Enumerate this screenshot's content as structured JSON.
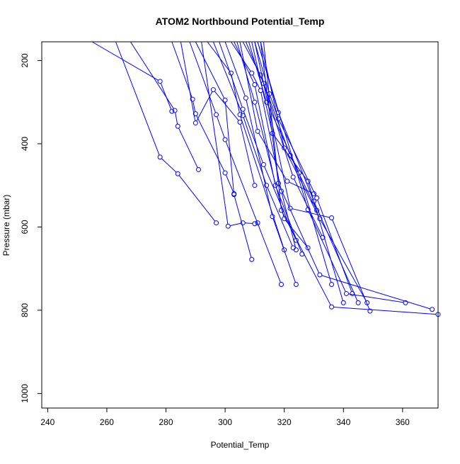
{
  "chart_data": {
    "type": "line",
    "title": "ATOM2 Northbound Potential_Temp",
    "xlabel": "Potential_Temp",
    "ylabel": "Pressure (mbar)",
    "xlim": [
      238,
      372
    ],
    "ylim": [
      1035,
      155
    ],
    "y_reversed": true,
    "x_ticks": [
      240,
      260,
      280,
      300,
      320,
      340,
      360
    ],
    "y_ticks": [
      200,
      400,
      600,
      800,
      1000
    ],
    "series_color": "#0000ff",
    "marker": "open-circle",
    "grid": false,
    "legend": "none",
    "series": [
      {
        "points": [
          [
            255,
            155
          ],
          [
            278,
            250
          ],
          [
            282,
            322
          ]
        ]
      },
      {
        "points": [
          [
            263,
            155
          ],
          [
            278,
            432
          ],
          [
            284,
            472
          ],
          [
            297,
            590
          ]
        ]
      },
      {
        "points": [
          [
            268,
            155
          ],
          [
            283,
            320
          ],
          [
            284,
            358
          ],
          [
            291,
            462
          ]
        ]
      },
      {
        "points": [
          [
            282,
            155
          ],
          [
            289,
            293
          ],
          [
            290,
            328
          ],
          [
            300,
            470
          ],
          [
            303,
            520
          ]
        ]
      },
      {
        "points": [
          [
            285,
            155
          ],
          [
            290,
            350
          ],
          [
            296,
            270
          ],
          [
            305,
            348
          ],
          [
            310,
            500
          ]
        ]
      },
      {
        "points": [
          [
            288,
            155
          ],
          [
            297,
            330
          ],
          [
            300,
            390
          ],
          [
            319,
            738
          ]
        ]
      },
      {
        "points": [
          [
            290,
            155
          ],
          [
            300,
            295
          ],
          [
            303,
            522
          ],
          [
            309,
            678
          ]
        ]
      },
      {
        "points": [
          [
            292,
            155
          ],
          [
            301,
            598
          ],
          [
            306,
            590
          ],
          [
            310,
            592
          ],
          [
            311,
            590
          ]
        ]
      },
      {
        "points": [
          [
            294,
            155
          ],
          [
            302,
            230
          ],
          [
            305,
            330
          ],
          [
            320,
            655
          ]
        ]
      },
      {
        "points": [
          [
            296,
            155
          ],
          [
            306,
            332
          ],
          [
            314,
            500
          ],
          [
            323,
            650
          ]
        ]
      },
      {
        "points": [
          [
            298,
            155
          ],
          [
            306,
            317
          ],
          [
            313,
            450
          ],
          [
            324,
            632
          ]
        ]
      },
      {
        "points": [
          [
            300,
            155
          ],
          [
            307,
            290
          ],
          [
            316,
            575
          ],
          [
            324,
            738
          ]
        ]
      },
      {
        "points": [
          [
            302,
            155
          ],
          [
            309,
            230
          ],
          [
            312,
            272
          ],
          [
            319,
            514
          ],
          [
            324,
            655
          ]
        ]
      },
      {
        "points": [
          [
            303,
            155
          ],
          [
            310,
            258
          ],
          [
            317,
            500
          ],
          [
            326,
            665
          ]
        ]
      },
      {
        "points": [
          [
            304,
            155
          ],
          [
            310,
            300
          ],
          [
            320,
            580
          ],
          [
            328,
            650
          ]
        ]
      },
      {
        "points": [
          [
            305,
            155
          ],
          [
            311,
            370
          ],
          [
            321,
            490
          ],
          [
            330,
            520
          ]
        ]
      },
      {
        "points": [
          [
            306,
            155
          ],
          [
            312,
            235
          ],
          [
            322,
            428
          ],
          [
            331,
            560
          ]
        ]
      },
      {
        "points": [
          [
            307,
            155
          ],
          [
            313,
            255
          ],
          [
            323,
            480
          ],
          [
            333,
            625
          ]
        ]
      },
      {
        "points": [
          [
            308,
            155
          ],
          [
            314,
            300
          ],
          [
            325,
            470
          ],
          [
            336,
            738
          ]
        ]
      },
      {
        "points": [
          [
            309,
            155
          ],
          [
            316,
            375
          ],
          [
            328,
            490
          ],
          [
            340,
            782
          ]
        ]
      },
      {
        "points": [
          [
            310,
            155
          ],
          [
            315,
            280
          ],
          [
            318,
            340
          ],
          [
            331,
            530
          ],
          [
            343,
            760
          ]
        ]
      },
      {
        "points": [
          [
            311,
            155
          ],
          [
            318,
            325
          ],
          [
            330,
            538
          ],
          [
            345,
            782
          ]
        ]
      },
      {
        "points": [
          [
            312,
            155
          ],
          [
            320,
            410
          ],
          [
            332,
            580
          ],
          [
            348,
            782
          ]
        ]
      },
      {
        "points": [
          [
            310,
            155
          ],
          [
            322,
            555
          ],
          [
            336,
            578
          ],
          [
            349,
            802
          ]
        ]
      },
      {
        "points": [
          [
            311,
            155
          ],
          [
            328,
            558
          ],
          [
            341,
            760
          ],
          [
            361,
            782
          ]
        ]
      },
      {
        "points": [
          [
            312,
            155
          ],
          [
            318,
            495
          ],
          [
            332,
            715
          ],
          [
            370,
            798
          ]
        ]
      },
      {
        "points": [
          [
            313,
            155
          ],
          [
            319,
            560
          ],
          [
            336,
            792
          ],
          [
            372,
            810
          ]
        ]
      }
    ]
  }
}
